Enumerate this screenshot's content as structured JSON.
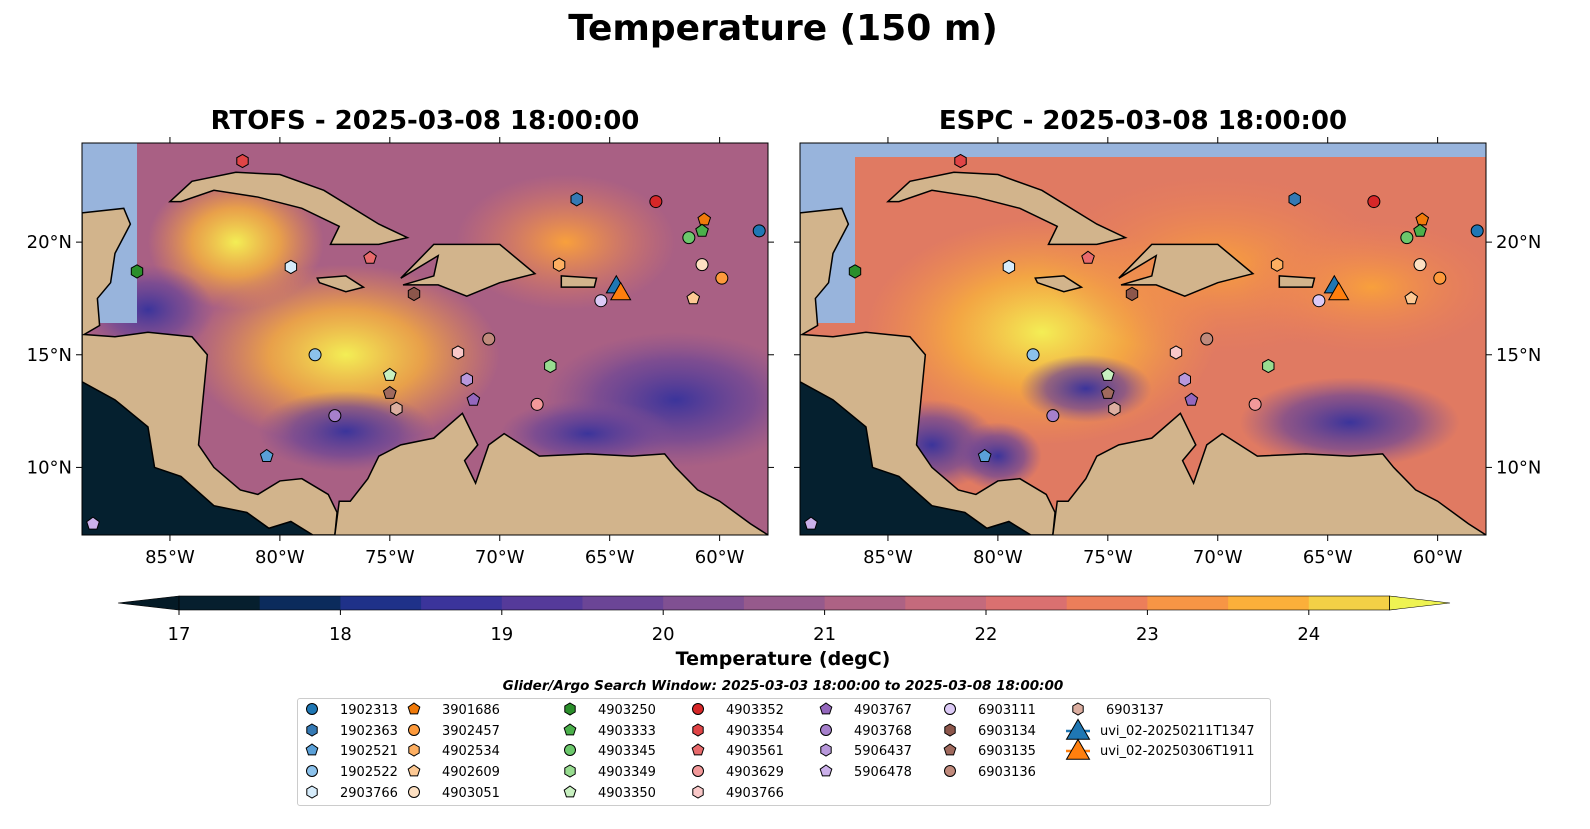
{
  "title": "Temperature (150 m)",
  "panels": [
    {
      "title": "RTOFS - 2025-03-08 18:00:00",
      "model": "RTOFS"
    },
    {
      "title": "ESPC - 2025-03-08 18:00:00",
      "model": "ESPC"
    }
  ],
  "colorbar": {
    "label": "Temperature (degC)",
    "ticks": [
      "17",
      "18",
      "19",
      "20",
      "21",
      "22",
      "23",
      "24"
    ],
    "min": 17,
    "max": 24.5,
    "step": 0.5,
    "colors": [
      "#061f2e",
      "#0b2b5c",
      "#1f3189",
      "#3b349b",
      "#553a9a",
      "#6b4596",
      "#805092",
      "#965a8c",
      "#ad6284",
      "#c46a7c",
      "#da7070",
      "#ec7e5a",
      "#f79545",
      "#fbaf3a",
      "#f3d046"
    ],
    "over_color": "#eef352",
    "under_color": "#041a26"
  },
  "axes": {
    "lon_ticks": [
      {
        "v": -85,
        "label": "85°W"
      },
      {
        "v": -80,
        "label": "80°W"
      },
      {
        "v": -75,
        "label": "75°W"
      },
      {
        "v": -70,
        "label": "70°W"
      },
      {
        "v": -65,
        "label": "65°W"
      },
      {
        "v": -60,
        "label": "60°W"
      }
    ],
    "lat_ticks": [
      {
        "v": 20,
        "label": "20°N"
      },
      {
        "v": 15,
        "label": "15°N"
      },
      {
        "v": 10,
        "label": "10°N"
      }
    ],
    "lon_range": [
      -89,
      -57.8
    ],
    "lat_range": [
      7.0,
      24.4
    ]
  },
  "legend": {
    "title": "Glider/Argo Search Window: 2025-03-03 18:00:00 to 2025-03-08 18:00:00",
    "items": [
      {
        "label": "1902313",
        "shape": "circle",
        "color": "#1f77b4",
        "lon": -58.2,
        "lat": 20.5
      },
      {
        "label": "1902363",
        "shape": "hexagon",
        "color": "#3479b4",
        "lon": -66.5,
        "lat": 21.9
      },
      {
        "label": "1902521",
        "shape": "pentagon",
        "color": "#5aa0d8",
        "lon": -80.6,
        "lat": 10.5
      },
      {
        "label": "1902522",
        "shape": "circle",
        "color": "#8cc2ec",
        "lon": -78.4,
        "lat": 15.0
      },
      {
        "label": "2903766",
        "shape": "hexagon",
        "color": "#d6ecfb",
        "lon": -79.5,
        "lat": 18.9
      },
      {
        "label": "3901686",
        "shape": "pentagon",
        "color": "#f07a0a",
        "lon": -60.7,
        "lat": 21.0
      },
      {
        "label": "3902457",
        "shape": "circle",
        "color": "#fd9a3c",
        "lon": -59.9,
        "lat": 18.4
      },
      {
        "label": "4902534",
        "shape": "hexagon",
        "color": "#fdaf62",
        "lon": -67.3,
        "lat": 19.0
      },
      {
        "label": "4902609",
        "shape": "pentagon",
        "color": "#fdc994",
        "lon": -61.2,
        "lat": 17.5
      },
      {
        "label": "4903051",
        "shape": "circle",
        "color": "#fde0c2",
        "lon": -60.8,
        "lat": 19.0
      },
      {
        "label": "4903250",
        "shape": "hexagon",
        "color": "#2b8f2b",
        "lon": -86.5,
        "lat": 18.7
      },
      {
        "label": "4903333",
        "shape": "pentagon",
        "color": "#4bb04b",
        "lon": -60.8,
        "lat": 20.5
      },
      {
        "label": "4903345",
        "shape": "circle",
        "color": "#6cc86c",
        "lon": -61.4,
        "lat": 20.2
      },
      {
        "label": "4903349",
        "shape": "hexagon",
        "color": "#98dc90",
        "lon": -67.7,
        "lat": 14.5
      },
      {
        "label": "4903350",
        "shape": "pentagon",
        "color": "#c8f0c0",
        "lon": -75.0,
        "lat": 14.1
      },
      {
        "label": "4903352",
        "shape": "circle",
        "color": "#d62728",
        "lon": -62.9,
        "lat": 21.8
      },
      {
        "label": "4903354",
        "shape": "hexagon",
        "color": "#e04446",
        "lon": -81.7,
        "lat": 23.6
      },
      {
        "label": "4903561",
        "shape": "pentagon",
        "color": "#e86a6c",
        "lon": -75.9,
        "lat": 19.3
      },
      {
        "label": "4903629",
        "shape": "circle",
        "color": "#f2999a",
        "lon": -68.3,
        "lat": 12.8
      },
      {
        "label": "4903766",
        "shape": "hexagon",
        "color": "#f9c8c8",
        "lon": -71.9,
        "lat": 15.1
      },
      {
        "label": "4903767",
        "shape": "pentagon",
        "color": "#9467bd",
        "lon": -71.2,
        "lat": 13.0
      },
      {
        "label": "4903768",
        "shape": "circle",
        "color": "#a680cc",
        "lon": -77.5,
        "lat": 12.3
      },
      {
        "label": "5906437",
        "shape": "hexagon",
        "color": "#b898db",
        "lon": -71.5,
        "lat": 13.9
      },
      {
        "label": "5906478",
        "shape": "pentagon",
        "color": "#cbb0ea",
        "lon": -88.5,
        "lat": 7.5
      },
      {
        "label": "6903111",
        "shape": "circle",
        "color": "#dccaf6",
        "lon": -65.4,
        "lat": 17.4
      },
      {
        "label": "6903134",
        "shape": "hexagon",
        "color": "#8c564b",
        "lon": -73.9,
        "lat": 17.7
      },
      {
        "label": "6903135",
        "shape": "pentagon",
        "color": "#a06a5e",
        "lon": -75.0,
        "lat": 13.3
      },
      {
        "label": "6903136",
        "shape": "circle",
        "color": "#c08a7c",
        "lon": -70.5,
        "lat": 15.7
      },
      {
        "label": "6903137",
        "shape": "hexagon",
        "color": "#dcaea0",
        "lon": -74.7,
        "lat": 12.6
      },
      {
        "label": "uvi_02-20250211T1347",
        "shape": "triangle",
        "color": "#1f77b4",
        "lon": -64.7,
        "lat": 18.1
      },
      {
        "label": "uvi_02-20250306T1911",
        "shape": "triangle",
        "color": "#ff7f0e",
        "lon": -64.5,
        "lat": 17.8
      }
    ]
  },
  "chart_data": {
    "type": "heatmap",
    "title": "Temperature (150 m)",
    "subplots": [
      "RTOFS - 2025-03-08 18:00:00",
      "ESPC - 2025-03-08 18:00:00"
    ],
    "colorbar_label": "Temperature (degC)",
    "colorbar_range": [
      17,
      24.5
    ],
    "xlabel": "",
    "ylabel": ""
  }
}
